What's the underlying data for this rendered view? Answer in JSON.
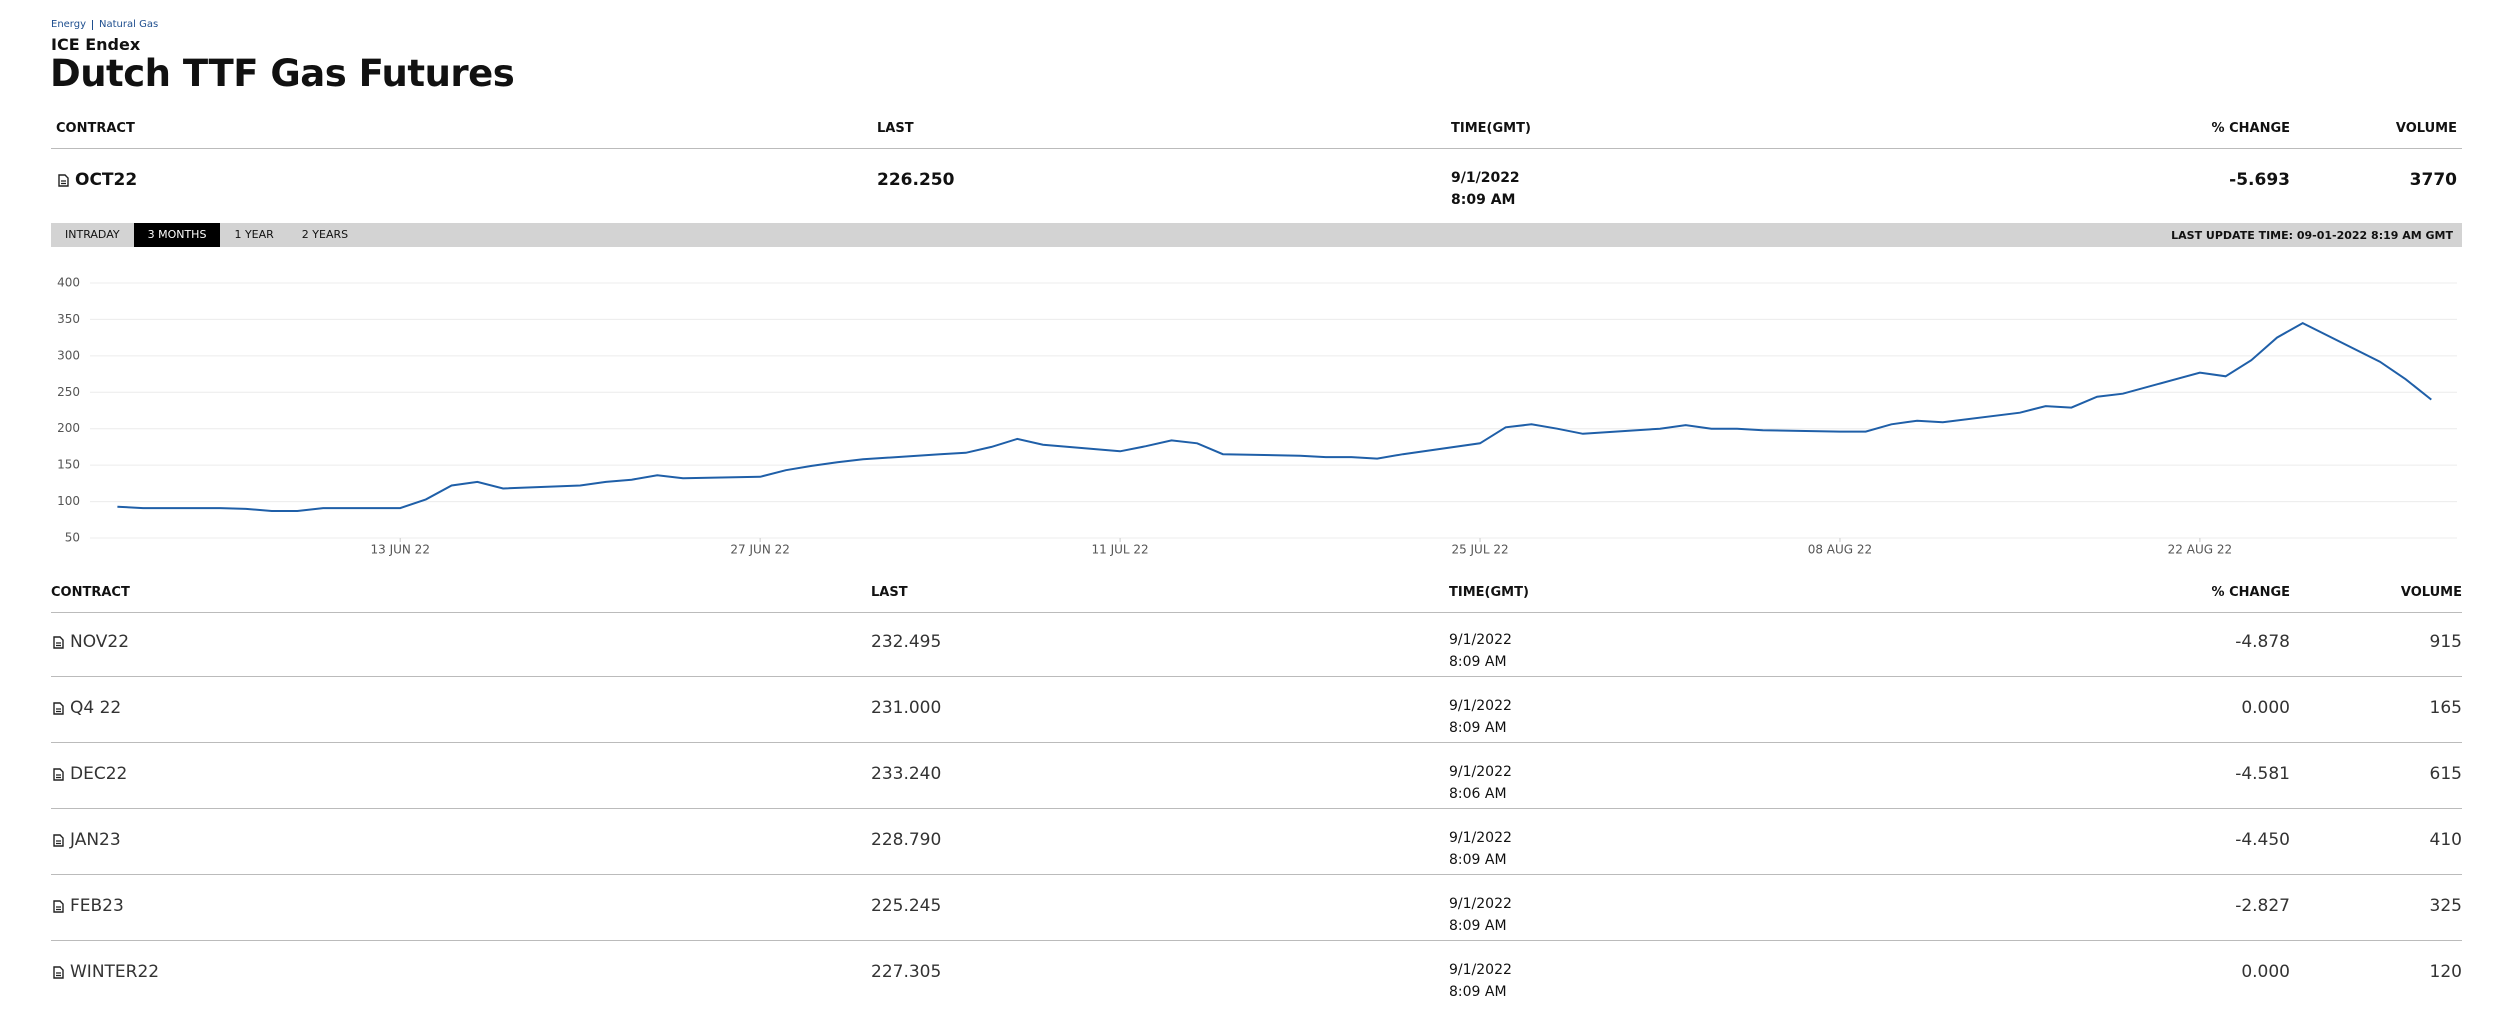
{
  "header": {
    "breadcrumb": [
      "Energy",
      "Natural Gas"
    ],
    "exchange": "ICE Endex",
    "title": "Dutch TTF Gas Futures"
  },
  "main_table": {
    "columns": [
      "CONTRACT",
      "LAST",
      "TIME(GMT)",
      "% CHANGE",
      "VOLUME"
    ],
    "rows": [
      {
        "contract": "OCT22",
        "last": "226.250",
        "date": "9/1/2022",
        "time": "8:09 AM",
        "change": "-5.693",
        "volume": "3770"
      }
    ]
  },
  "tabs": {
    "items": [
      "INTRADAY",
      "3 MONTHS",
      "1 YEAR",
      "2 YEARS"
    ],
    "active": 1,
    "last_update": "LAST UPDATE TIME: 09-01-2022 8:19 AM GMT"
  },
  "chart_data": {
    "type": "line",
    "color": "#1f5fa8",
    "grid": true,
    "xlim": [
      "2022-05-31",
      "2022-09-01"
    ],
    "xticks": [
      {
        "value": "2022-06-13",
        "label": "13 JUN 22"
      },
      {
        "value": "2022-06-27",
        "label": "27 JUN 22"
      },
      {
        "value": "2022-07-11",
        "label": "11 JUL 22"
      },
      {
        "value": "2022-07-25",
        "label": "25 JUL 22"
      },
      {
        "value": "2022-08-08",
        "label": "08 AUG 22"
      },
      {
        "value": "2022-08-22",
        "label": "22 AUG 22"
      }
    ],
    "ylim": [
      50,
      400
    ],
    "yticks": [
      50,
      100,
      150,
      200,
      250,
      300,
      350,
      400
    ],
    "x": [
      "2022-06-02",
      "2022-06-03",
      "2022-06-06",
      "2022-06-07",
      "2022-06-08",
      "2022-06-09",
      "2022-06-10",
      "2022-06-13",
      "2022-06-14",
      "2022-06-15",
      "2022-06-16",
      "2022-06-17",
      "2022-06-20",
      "2022-06-21",
      "2022-06-22",
      "2022-06-23",
      "2022-06-24",
      "2022-06-27",
      "2022-06-28",
      "2022-06-29",
      "2022-06-30",
      "2022-07-01",
      "2022-07-04",
      "2022-07-05",
      "2022-07-06",
      "2022-07-07",
      "2022-07-08",
      "2022-07-11",
      "2022-07-12",
      "2022-07-13",
      "2022-07-14",
      "2022-07-15",
      "2022-07-18",
      "2022-07-19",
      "2022-07-20",
      "2022-07-21",
      "2022-07-22",
      "2022-07-25",
      "2022-07-26",
      "2022-07-27",
      "2022-07-28",
      "2022-07-29",
      "2022-08-01",
      "2022-08-02",
      "2022-08-03",
      "2022-08-04",
      "2022-08-05",
      "2022-08-08",
      "2022-08-09",
      "2022-08-10",
      "2022-08-11",
      "2022-08-12",
      "2022-08-15",
      "2022-08-16",
      "2022-08-17",
      "2022-08-18",
      "2022-08-19",
      "2022-08-22",
      "2022-08-23",
      "2022-08-24",
      "2022-08-25",
      "2022-08-26",
      "2022-08-29",
      "2022-08-30",
      "2022-08-31"
    ],
    "values": [
      93,
      91,
      91,
      90,
      87,
      87,
      91,
      91,
      103,
      122,
      127,
      118,
      122,
      127,
      130,
      136,
      132,
      134,
      143,
      149,
      154,
      158,
      165,
      167,
      175,
      186,
      178,
      169,
      176,
      184,
      180,
      165,
      163,
      161,
      161,
      159,
      165,
      180,
      202,
      206,
      200,
      193,
      200,
      205,
      200,
      200,
      198,
      196,
      196,
      206,
      211,
      209,
      222,
      231,
      229,
      244,
      248,
      277,
      272,
      294,
      325,
      345,
      292,
      268,
      240
    ]
  },
  "contracts_table": {
    "columns": [
      "CONTRACT",
      "LAST",
      "TIME(GMT)",
      "% CHANGE",
      "VOLUME"
    ],
    "rows": [
      {
        "contract": "NOV22",
        "last": "232.495",
        "date": "9/1/2022",
        "time": "8:09 AM",
        "change": "-4.878",
        "volume": "915"
      },
      {
        "contract": "Q4 22",
        "last": "231.000",
        "date": "9/1/2022",
        "time": "8:09 AM",
        "change": "0.000",
        "volume": "165"
      },
      {
        "contract": "DEC22",
        "last": "233.240",
        "date": "9/1/2022",
        "time": "8:06 AM",
        "change": "-4.581",
        "volume": "615"
      },
      {
        "contract": "JAN23",
        "last": "228.790",
        "date": "9/1/2022",
        "time": "8:09 AM",
        "change": "-4.450",
        "volume": "410"
      },
      {
        "contract": "FEB23",
        "last": "225.245",
        "date": "9/1/2022",
        "time": "8:09 AM",
        "change": "-2.827",
        "volume": "325"
      },
      {
        "contract": "WINTER22",
        "last": "227.305",
        "date": "9/1/2022",
        "time": "8:09 AM",
        "change": "0.000",
        "volume": "120"
      }
    ]
  }
}
